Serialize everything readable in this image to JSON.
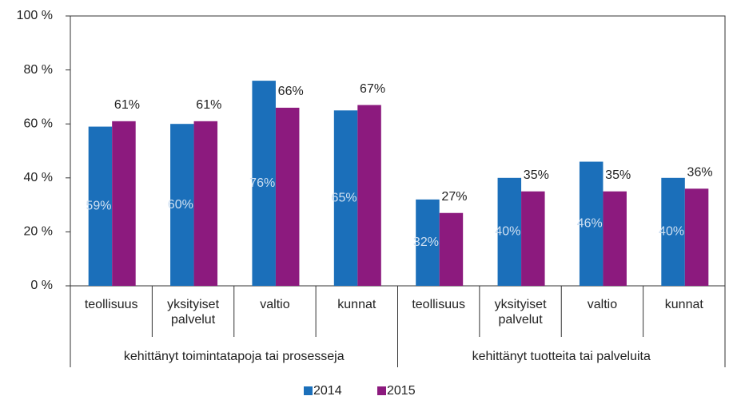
{
  "chart_data": {
    "type": "bar",
    "categories": [
      "teollisuus",
      "yksityiset palvelut",
      "valtio",
      "kunnat",
      "teollisuus",
      "yksityiset palvelut",
      "valtio",
      "kunnat"
    ],
    "groups": [
      "kehittänyt toimintatapoja tai prosesseja",
      "kehittänyt tuotteita tai palveluita"
    ],
    "series": [
      {
        "name": "2014",
        "color": "#1b6fba",
        "values": [
          59,
          60,
          76,
          65,
          32,
          40,
          46,
          40
        ],
        "value_labels": [
          "59%",
          "60%",
          "76%",
          "65%",
          "32%",
          "40%",
          "46%",
          "40%"
        ]
      },
      {
        "name": "2015",
        "color": "#8c1a7e",
        "values": [
          61,
          61,
          66,
          67,
          27,
          35,
          35,
          36
        ],
        "value_labels": [
          "61%",
          "61%",
          "66%",
          "67%",
          "27%",
          "35%",
          "35%",
          "36%"
        ]
      }
    ],
    "ylim": [
      0,
      100
    ],
    "yticks": [
      {
        "value": 0,
        "label": "0 %"
      },
      {
        "value": 20,
        "label": "20 %"
      },
      {
        "value": 40,
        "label": "40 %"
      },
      {
        "value": 60,
        "label": "60 %"
      },
      {
        "value": 80,
        "label": "80 %"
      },
      {
        "value": 100,
        "label": "100 %"
      }
    ],
    "legend": "bottom"
  }
}
